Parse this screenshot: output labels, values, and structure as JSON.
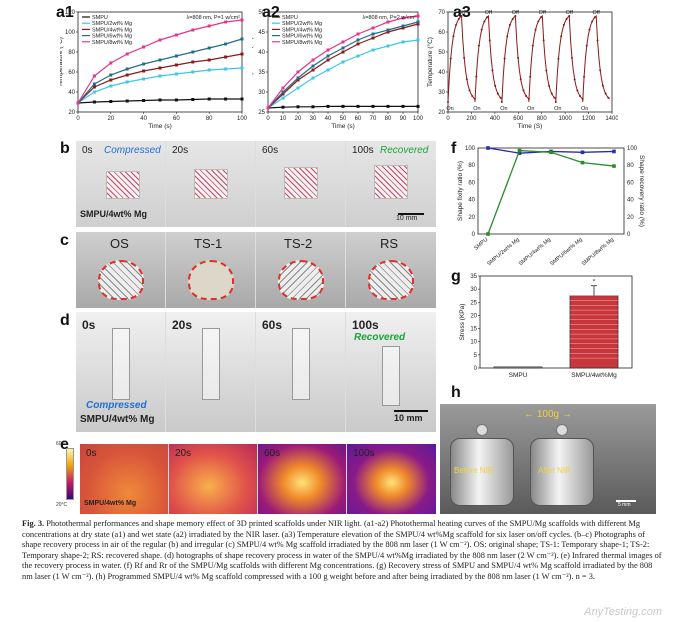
{
  "panels": {
    "a1": "a1",
    "a2": "a2",
    "a3": "a3",
    "b": "b",
    "c": "c",
    "d": "d",
    "e": "e",
    "f": "f",
    "g": "g",
    "h": "h"
  },
  "chart_data": [
    {
      "id": "a1",
      "type": "line",
      "annotation": "λ=808 nm, P=1 w/cm²",
      "xlabel": "Time (s)",
      "ylabel": "Temperature (°C)",
      "xlim": [
        0,
        100
      ],
      "ylim": [
        20,
        120
      ],
      "xticks": [
        0,
        20,
        40,
        60,
        80,
        100
      ],
      "yticks": [
        20,
        40,
        60,
        80,
        100,
        120
      ],
      "x": [
        0,
        10,
        20,
        30,
        40,
        50,
        60,
        70,
        80,
        90,
        100
      ],
      "series": [
        {
          "name": "SMPU",
          "color": "#111111",
          "values": [
            29,
            30,
            30.5,
            31,
            31.5,
            32,
            32,
            32.5,
            33,
            33,
            33
          ]
        },
        {
          "name": "SMPU/2wt% Mg",
          "color": "#3ec6e8",
          "values": [
            29,
            40,
            46,
            50,
            53,
            56,
            58,
            60,
            62,
            63,
            64
          ]
        },
        {
          "name": "SMPU/4wt% Mg",
          "color": "#8b1a1a",
          "values": [
            29,
            45,
            52,
            57,
            61,
            64,
            67,
            70,
            72,
            75,
            78
          ]
        },
        {
          "name": "SMPU/6wt% Mg",
          "color": "#1f6f8b",
          "values": [
            29,
            48,
            57,
            63,
            68,
            72,
            76,
            80,
            84,
            88,
            93
          ]
        },
        {
          "name": "SMPU/8wt% Mg",
          "color": "#e8338c",
          "values": [
            29,
            56,
            69,
            78,
            85,
            92,
            97,
            102,
            106,
            110,
            112
          ]
        }
      ]
    },
    {
      "id": "a2",
      "type": "line",
      "annotation": "λ=808 nm, P=2 w/cm²",
      "xlabel": "Time (s)",
      "ylabel": "Temperature (°C)",
      "xlim": [
        0,
        100
      ],
      "ylim": [
        25,
        50
      ],
      "xticks": [
        0,
        10,
        20,
        30,
        40,
        50,
        60,
        70,
        80,
        90,
        100
      ],
      "yticks": [
        25,
        30,
        35,
        40,
        45,
        50
      ],
      "x": [
        0,
        10,
        20,
        30,
        40,
        50,
        60,
        70,
        80,
        90,
        100
      ],
      "series": [
        {
          "name": "SMPU",
          "color": "#111111",
          "values": [
            26,
            26.2,
            26.3,
            26.3,
            26.4,
            26.4,
            26.4,
            26.4,
            26.4,
            26.4,
            26.4
          ]
        },
        {
          "name": "SMPU/2wt% Mg",
          "color": "#3ec6e8",
          "values": [
            26,
            28.5,
            31,
            33.5,
            35.5,
            37.5,
            39,
            40.5,
            41.5,
            42.5,
            43
          ]
        },
        {
          "name": "SMPU/4wt% Mg",
          "color": "#8b1a1a",
          "values": [
            26,
            29.5,
            33,
            35.5,
            38,
            40,
            42,
            43.5,
            45,
            46,
            47
          ]
        },
        {
          "name": "SMPU/6wt% Mg",
          "color": "#1f6f8b",
          "values": [
            26,
            30,
            33.5,
            36.5,
            39,
            41,
            43,
            44.5,
            45.5,
            46.5,
            47.5
          ]
        },
        {
          "name": "SMPU/8wt% Mg",
          "color": "#e8338c",
          "values": [
            26,
            31,
            35,
            38,
            40.5,
            42.5,
            44.5,
            46,
            47.5,
            48.5,
            49
          ]
        }
      ]
    },
    {
      "id": "a3",
      "type": "line",
      "xlabel": "Time (S)",
      "ylabel": "Temperature (°C)",
      "xlim": [
        0,
        1400
      ],
      "ylim": [
        20,
        70
      ],
      "xticks": [
        0,
        200,
        400,
        600,
        800,
        1000,
        1200,
        1400
      ],
      "yticks": [
        20,
        30,
        40,
        50,
        60,
        70
      ],
      "cycles": 6,
      "period": 230,
      "t_low": 25,
      "t_high": 68,
      "labels": {
        "on": "On",
        "off": "Off"
      },
      "color": "#8b1a1a"
    },
    {
      "id": "f",
      "type": "line",
      "categories": [
        "SMPU",
        "SMPU/2wt% Mg",
        "SMPU/4wt% Mg",
        "SMPU/6wt% Mg",
        "SMPU/8wt% Mg"
      ],
      "ylabel_left": "Shape fixity ratio (%)",
      "ylabel_right": "Shape recovery ratio (%)",
      "ylim": [
        0,
        100
      ],
      "yticks": [
        0,
        20,
        40,
        60,
        80,
        100
      ],
      "series": [
        {
          "name": "Shape fixity ratio",
          "color": "#2630a8",
          "values": [
            100,
            94,
            96,
            95,
            96
          ]
        },
        {
          "name": "Shape recovery ratio",
          "color": "#2b8a2b",
          "values": [
            0,
            97,
            95,
            83,
            79
          ]
        }
      ]
    },
    {
      "id": "g",
      "type": "bar",
      "categories": [
        "SMPU",
        "SMPU/4wt%Mg"
      ],
      "values": [
        0.4,
        27.5
      ],
      "ylabel": "Stress (KPa)",
      "ylim": [
        0,
        35
      ],
      "yticks": [
        0,
        5,
        10,
        15,
        20,
        25,
        30,
        35
      ],
      "significance": "*"
    }
  ],
  "photos": {
    "b": {
      "labels": [
        "0s",
        "20s",
        "60s",
        "100s"
      ],
      "states": {
        "compressed": "Compressed",
        "recovered": "Recovered"
      },
      "sample": "SMPU/4wt% Mg",
      "scale": "10 mm",
      "colors": {
        "compressed": "#1f6fd6",
        "recovered": "#1aa43a"
      }
    },
    "c": {
      "labels": [
        "OS",
        "TS-1",
        "TS-2",
        "RS"
      ]
    },
    "d": {
      "labels": [
        "0s",
        "20s",
        "60s",
        "100s"
      ],
      "states": {
        "compressed": "Compressed",
        "recovered": "Recovered"
      },
      "sample": "SMPU/4wt% Mg",
      "scale": "10 mm"
    },
    "e": {
      "labels": [
        "0s",
        "20s",
        "60s",
        "100s"
      ],
      "sample": "SMPU/4wt% Mg",
      "scalebar_top": "60°C",
      "scalebar_bottom": "20°C"
    },
    "h": {
      "weight": "100g",
      "before": "Before NIR",
      "after": "After NIR",
      "scale": "5 mm"
    }
  },
  "caption": {
    "lead": "Fig. 3.",
    "text": "Photothermal performances and shape memory effect of 3D printed scaffolds under NIR light. (a1-a2) Photothermal heating curves of the SMPU/Mg scaffolds with different Mg concentrations at dry state (a1) and wet state (a2) irradiated by the NIR laser. (a3) Temperature elevation of the SMPU/4 wt%Mg scaffold for six laser on/off cycles. (b–c) Photographs of shape recovery process in air of the regular (b) and irregular (c) SMPU/4 wt% Mg scaffold irradiated by the 808 nm laser (1 W cm⁻²). OS: original shape; TS-1: Temporary shape-1; TS-2: Temporary shape-2; RS: recovered shape. (d) hotographs of shape recovery process in water of the SMPU/4 wt%Mg irradiated by the 808 nm laser (2 W cm⁻²). (e) Infrared thermal images of the recovery process in water. (f) Rf and Rr of the SMPU/Mg scaffolds with different Mg concentrations. (g) Recovery stress of SMPU and SMPU/4 wt% Mg scaffold irradiated by the 808 nm laser (1 W cm⁻²). (h) Programmed SMPU/4 wt% Mg scaffold compressed with a 100 g weight before and after being irradiated by the 808 nm laser (1 W cm⁻²). n = 3."
  },
  "watermark": "AnyTesting.com"
}
